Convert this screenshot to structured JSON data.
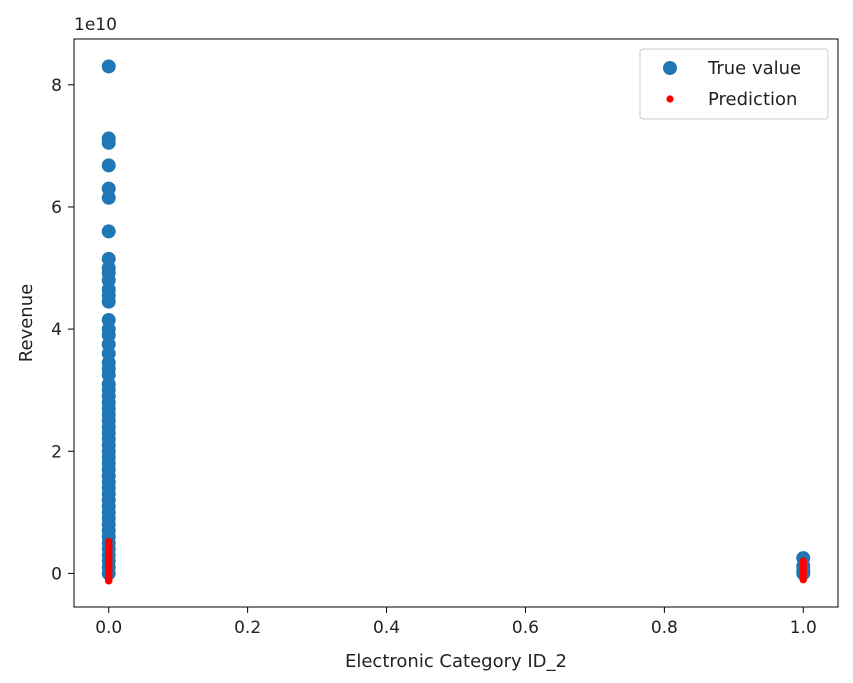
{
  "chart_data": {
    "type": "scatter",
    "xlabel": "Electronic Category ID_2",
    "ylabel": "Revenue",
    "offset_text": "1e10",
    "xlim": [
      -0.05,
      1.05
    ],
    "ylim": [
      -5.5,
      87.5
    ],
    "y_scale_note": "y values in units of 1e10",
    "x_ticks": [
      0.0,
      0.2,
      0.4,
      0.6,
      0.8,
      1.0
    ],
    "x_tick_labels": [
      "0.0",
      "0.2",
      "0.4",
      "0.6",
      "0.8",
      "1.0"
    ],
    "y_ticks": [
      0,
      2,
      4,
      6,
      8
    ],
    "y_tick_labels": [
      "0",
      "2",
      "4",
      "6",
      "8"
    ],
    "grid": false,
    "legend_position": "top-right",
    "series": [
      {
        "name": "True value",
        "color": "#1f77b4",
        "marker": "large-circle",
        "points": [
          [
            0,
            8.3
          ],
          [
            0,
            7.12
          ],
          [
            0,
            7.05
          ],
          [
            0,
            6.68
          ],
          [
            0,
            6.3
          ],
          [
            0,
            6.15
          ],
          [
            0,
            5.6
          ],
          [
            0,
            5.15
          ],
          [
            0,
            5.0
          ],
          [
            0,
            4.92
          ],
          [
            0,
            4.8
          ],
          [
            0,
            4.65
          ],
          [
            0,
            4.55
          ],
          [
            0,
            4.45
          ],
          [
            0,
            4.15
          ],
          [
            0,
            4.0
          ],
          [
            0,
            3.9
          ],
          [
            0,
            3.75
          ],
          [
            0,
            3.6
          ],
          [
            0,
            3.45
          ],
          [
            0,
            3.35
          ],
          [
            0,
            3.25
          ],
          [
            0,
            3.1
          ],
          [
            0,
            3.0
          ],
          [
            0,
            2.9
          ],
          [
            0,
            2.8
          ],
          [
            0,
            2.7
          ],
          [
            0,
            2.6
          ],
          [
            0,
            2.5
          ],
          [
            0,
            2.4
          ],
          [
            0,
            2.3
          ],
          [
            0,
            2.2
          ],
          [
            0,
            2.1
          ],
          [
            0,
            2.0
          ],
          [
            0,
            1.9
          ],
          [
            0,
            1.8
          ],
          [
            0,
            1.7
          ],
          [
            0,
            1.6
          ],
          [
            0,
            1.5
          ],
          [
            0,
            1.4
          ],
          [
            0,
            1.3
          ],
          [
            0,
            1.2
          ],
          [
            0,
            1.1
          ],
          [
            0,
            1.0
          ],
          [
            0,
            0.9
          ],
          [
            0,
            0.8
          ],
          [
            0,
            0.7
          ],
          [
            0,
            0.6
          ],
          [
            0,
            0.5
          ],
          [
            0,
            0.4
          ],
          [
            0,
            0.3
          ],
          [
            0,
            0.2
          ],
          [
            0,
            0.1
          ],
          [
            0,
            0.0
          ],
          [
            1,
            0.25
          ],
          [
            1,
            0.12
          ],
          [
            1,
            0.05
          ],
          [
            1,
            0.0
          ]
        ]
      },
      {
        "name": "Prediction",
        "color": "#ff0000",
        "marker": "small-dot",
        "points": [
          [
            0,
            0.52
          ],
          [
            0,
            0.46
          ],
          [
            0,
            0.4
          ],
          [
            0,
            0.34
          ],
          [
            0,
            0.28
          ],
          [
            0,
            0.22
          ],
          [
            0,
            0.16
          ],
          [
            0,
            0.1
          ],
          [
            0,
            0.04
          ],
          [
            0,
            -0.02
          ],
          [
            0,
            -0.08
          ],
          [
            0,
            -0.12
          ],
          [
            1,
            0.2
          ],
          [
            1,
            0.14
          ],
          [
            1,
            0.08
          ],
          [
            1,
            0.02
          ],
          [
            1,
            -0.04
          ],
          [
            1,
            -0.1
          ]
        ]
      }
    ]
  }
}
